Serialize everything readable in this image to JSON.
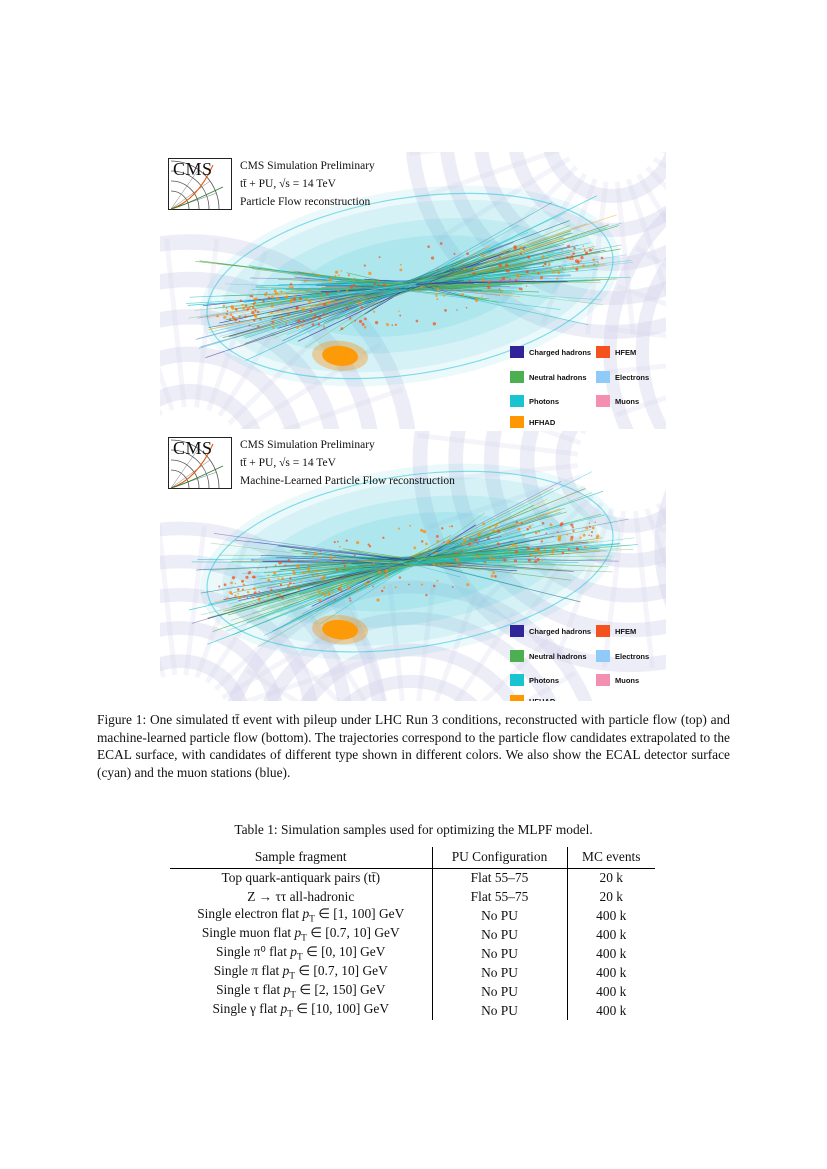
{
  "figure": {
    "panels": [
      {
        "logo": "CMS",
        "header_lines": [
          "CMS Simulation Preliminary",
          "tt̄ + PU, √s = 14 TeV",
          "Particle Flow reconstruction"
        ]
      },
      {
        "logo": "CMS",
        "header_lines": [
          "CMS Simulation Preliminary",
          "tt̄ + PU, √s = 14 TeV",
          "Machine-Learned Particle Flow reconstruction"
        ]
      }
    ],
    "legend": {
      "left": [
        {
          "label": "Charged hadrons",
          "color": "#31249b"
        },
        {
          "label": "Neutral hadrons",
          "color": "#4caf50"
        },
        {
          "label": "Photons",
          "color": "#19c3cf"
        },
        {
          "label": "HFHAD",
          "color": "#ff9800"
        }
      ],
      "right": [
        {
          "label": "HFEM",
          "color": "#f4511e"
        },
        {
          "label": "Electrons",
          "color": "#90caf9"
        },
        {
          "label": "Muons",
          "color": "#f48fb1"
        }
      ]
    },
    "caption": "Figure 1: One simulated tt̄ event with pileup under LHC Run 3 conditions, reconstructed with particle flow (top) and machine-learned particle flow (bottom). The trajectories correspond to the particle flow candidates extrapolated to the ECAL surface, with candidates of different type shown in different colors. We also show the ECAL detector surface (cyan) and the muon stations (blue)."
  },
  "table": {
    "caption": "Table 1: Simulation samples used for optimizing the MLPF model.",
    "headers": [
      "Sample fragment",
      "PU Configuration",
      "MC events"
    ],
    "rows": [
      {
        "sample_pre": "Top quark-antiquark pairs (tt̄)",
        "pu": "Flat 55–75",
        "events": "20 k"
      },
      {
        "sample_pre": "Z → ττ all-hadronic",
        "pu": "Flat 55–75",
        "events": "20 k"
      },
      {
        "sample_pre": "Single electron flat ",
        "sample_var": "p",
        "sample_sub": "T",
        "sample_post": " ∈ [1, 100] GeV",
        "pu": "No PU",
        "events": "400 k"
      },
      {
        "sample_pre": "Single muon flat ",
        "sample_var": "p",
        "sample_sub": "T",
        "sample_post": " ∈ [0.7, 10] GeV",
        "pu": "No PU",
        "events": "400 k"
      },
      {
        "sample_pre": "Single π⁰ flat ",
        "sample_var": "p",
        "sample_sub": "T",
        "sample_post": " ∈ [0, 10] GeV",
        "pu": "No PU",
        "events": "400 k"
      },
      {
        "sample_pre": "Single π flat ",
        "sample_var": "p",
        "sample_sub": "T",
        "sample_post": " ∈ [0.7, 10] GeV",
        "pu": "No PU",
        "events": "400 k"
      },
      {
        "sample_pre": "Single τ flat ",
        "sample_var": "p",
        "sample_sub": "T",
        "sample_post": " ∈ [2, 150] GeV",
        "pu": "No PU",
        "events": "400 k"
      },
      {
        "sample_pre": "Single γ flat ",
        "sample_var": "p",
        "sample_sub": "T",
        "sample_post": " ∈ [10, 100] GeV",
        "pu": "No PU",
        "events": "400 k"
      }
    ]
  },
  "colors": {
    "ecal_surface": "#35c7de",
    "muon_stations": "#cfcfe9",
    "page_background": "#ffffff"
  }
}
